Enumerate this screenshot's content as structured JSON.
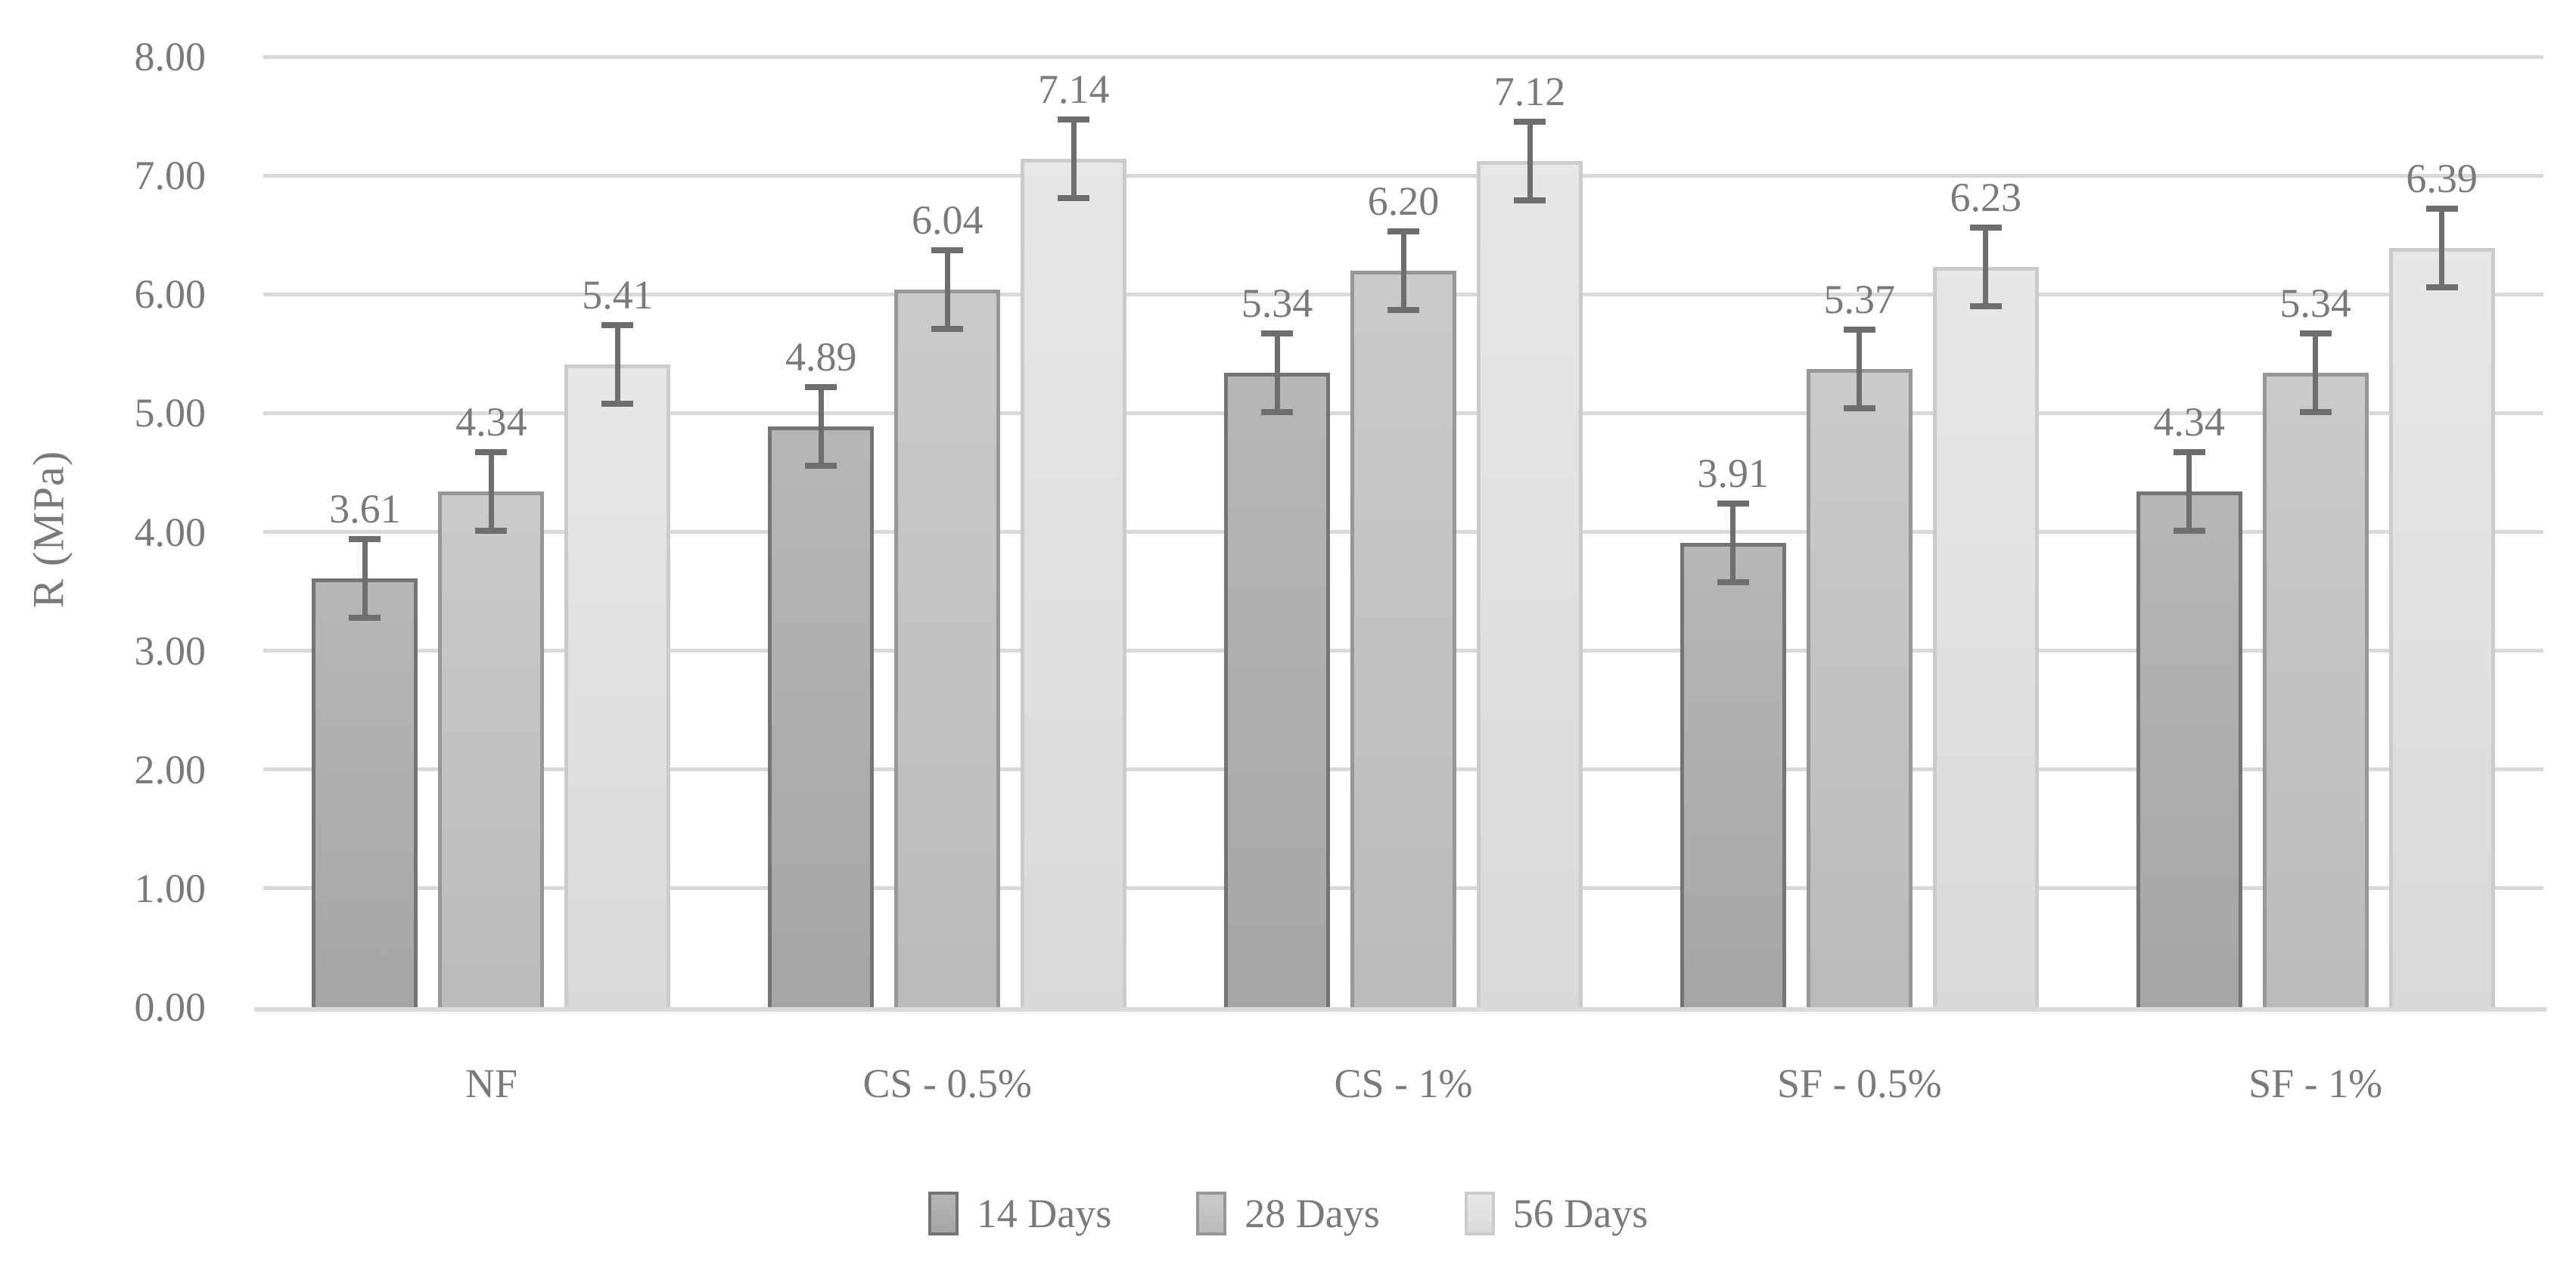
{
  "chart_data": {
    "type": "bar",
    "title": "",
    "xlabel": "",
    "ylabel": "R (MPa)",
    "categories": [
      "NF",
      "CS - 0.5%",
      "CS - 1%",
      "SF - 0.5%",
      "SF - 1%"
    ],
    "series": [
      {
        "name": "14 Days",
        "values": [
          3.61,
          4.89,
          5.34,
          3.91,
          4.34
        ],
        "fill": "#AEAEAE",
        "border": "#747474"
      },
      {
        "name": "28 Days",
        "values": [
          4.34,
          6.04,
          6.2,
          5.37,
          5.34
        ],
        "fill": "#C4C4C4",
        "border": "#979797"
      },
      {
        "name": "56 Days",
        "values": [
          5.41,
          7.14,
          7.12,
          6.23,
          6.39
        ],
        "fill": "#E4E4E4",
        "border": "#CBCBCB"
      }
    ],
    "data_labels": [
      "3.61",
      "4.34",
      "5.41",
      "4.89",
      "6.04",
      "7.14",
      "5.34",
      "6.20",
      "7.12",
      "3.91",
      "5.37",
      "6.23",
      "4.34",
      "5.34",
      "6.39"
    ],
    "error_bars": {
      "value": 0.33,
      "color": "#6E6E6E"
    },
    "ylim": [
      0,
      8
    ],
    "ytick_step": 1,
    "ytick_labels": [
      "0.00",
      "1.00",
      "2.00",
      "3.00",
      "4.00",
      "5.00",
      "6.00",
      "7.00",
      "8.00"
    ],
    "grid": true,
    "legend_position": "bottom",
    "colors": {
      "grid": "#D9D9D9",
      "axis_line": "#D9D9D9",
      "text": "#7A7A7A"
    }
  }
}
